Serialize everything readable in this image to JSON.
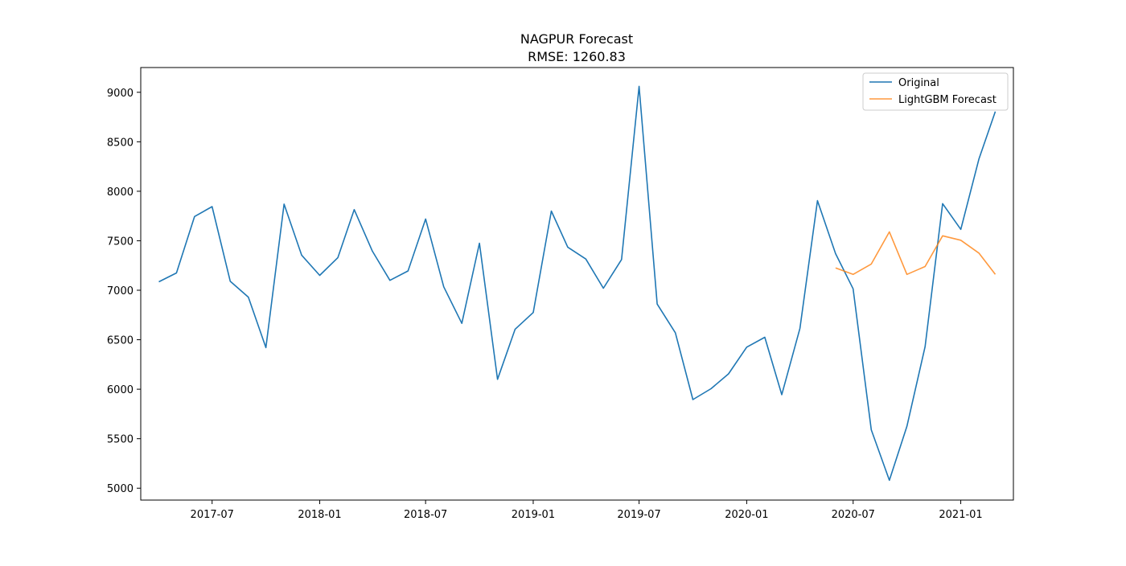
{
  "chart_data": {
    "type": "line",
    "title": "NAGPUR Forecast",
    "subtitle": "RMSE: 1260.83",
    "xlabel": "",
    "ylabel": "",
    "x_range": [
      "2017-03-01",
      "2021-04-01"
    ],
    "ylim": [
      4880,
      9250
    ],
    "y_ticks": [
      5000,
      5500,
      6000,
      6500,
      7000,
      7500,
      8000,
      8500,
      9000
    ],
    "x_ticks": [
      "2017-07",
      "2018-01",
      "2018-07",
      "2019-01",
      "2019-07",
      "2020-01",
      "2020-07",
      "2021-01"
    ],
    "grid": false,
    "legend_position": "top-right",
    "series": [
      {
        "name": "Original",
        "color": "#1f77b4",
        "x": [
          "2017-04",
          "2017-05",
          "2017-06",
          "2017-07",
          "2017-08",
          "2017-09",
          "2017-10",
          "2017-11",
          "2017-12",
          "2018-01",
          "2018-02",
          "2018-03",
          "2018-04",
          "2018-05",
          "2018-06",
          "2018-07",
          "2018-08",
          "2018-09",
          "2018-10",
          "2018-11",
          "2018-12",
          "2019-01",
          "2019-02",
          "2019-03",
          "2019-04",
          "2019-05",
          "2019-06",
          "2019-07",
          "2019-08",
          "2019-09",
          "2019-10",
          "2019-11",
          "2019-12",
          "2020-01",
          "2020-02",
          "2020-03",
          "2020-04",
          "2020-05",
          "2020-06",
          "2020-07",
          "2020-08",
          "2020-09",
          "2020-10",
          "2020-11",
          "2020-12",
          "2021-01",
          "2021-02",
          "2021-03"
        ],
        "values": [
          7085,
          7175,
          7745,
          7845,
          7090,
          6930,
          6420,
          7870,
          7355,
          7150,
          7330,
          7815,
          7395,
          7100,
          7195,
          7720,
          7035,
          6665,
          7475,
          6100,
          6605,
          6775,
          7800,
          7435,
          7315,
          7020,
          7310,
          9060,
          6860,
          6570,
          5895,
          6005,
          6155,
          6425,
          6525,
          5945,
          6615,
          7905,
          7370,
          7015,
          5590,
          5080,
          5625,
          6430,
          7875,
          7615,
          8325,
          8805
        ]
      },
      {
        "name": "LightGBM Forecast",
        "color": "#ff7f0e",
        "x": [
          "2020-06",
          "2020-07",
          "2020-08",
          "2020-09",
          "2020-10",
          "2020-11",
          "2020-12",
          "2021-01",
          "2021-02",
          "2021-03"
        ],
        "values": [
          7225,
          7160,
          7265,
          7590,
          7160,
          7240,
          7550,
          7505,
          7375,
          7160
        ]
      }
    ]
  }
}
